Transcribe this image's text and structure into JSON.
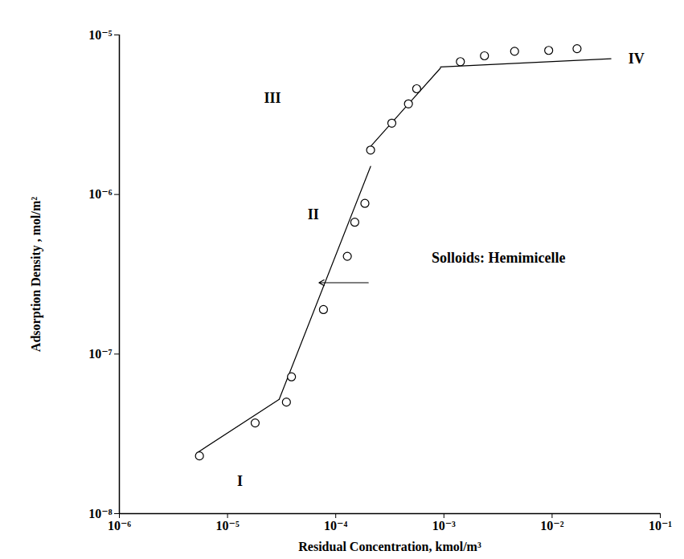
{
  "chart_data": {
    "type": "scatter",
    "x_label": "Residual Concentration, kmol/m³",
    "y_label": "Adsorption Density , mol/m²",
    "log": true,
    "grid": false,
    "color": "#000000",
    "marker": "circle",
    "xlim": [
      1e-06,
      0.1
    ],
    "ylim": [
      1e-08,
      1e-05
    ],
    "xticks": [
      {
        "value": 1e-06,
        "label": "10⁻⁶"
      },
      {
        "value": 1e-05,
        "label": "10⁻⁵"
      },
      {
        "value": 0.0001,
        "label": "10⁻⁴"
      },
      {
        "value": 0.001,
        "label": "10⁻³"
      },
      {
        "value": 0.01,
        "label": "10⁻²"
      },
      {
        "value": 0.1,
        "label": "10⁻¹"
      }
    ],
    "yticks": [
      {
        "value": 1e-08,
        "label": "10⁻⁸"
      },
      {
        "value": 1e-07,
        "label": "10⁻⁷"
      },
      {
        "value": 1e-06,
        "label": "10⁻⁶"
      },
      {
        "value": 1e-05,
        "label": "10⁻⁵"
      }
    ],
    "points": {
      "x": [
        5.5e-06,
        1.8e-05,
        3.5e-05,
        3.9e-05,
        7.7e-05,
        0.000128,
        0.00015,
        0.000186,
        0.00021,
        0.00033,
        0.00047,
        0.00056,
        0.00142,
        0.00237,
        0.0045,
        0.0093,
        0.017
      ],
      "y": [
        2.3e-08,
        3.7e-08,
        5e-08,
        7.2e-08,
        1.9e-07,
        4.1e-07,
        6.7e-07,
        8.8e-07,
        1.9e-06,
        2.8e-06,
        3.7e-06,
        4.6e-06,
        6.8e-06,
        7.4e-06,
        7.9e-06,
        8e-06,
        8.2e-06
      ]
    },
    "fit_lines": [
      {
        "x": [
          5.2e-06,
          3e-05
        ],
        "y": [
          2.4e-08,
          5.2e-08
        ]
      },
      {
        "x": [
          3e-05,
          0.00021
        ],
        "y": [
          5.2e-08,
          1.5e-06
        ]
      },
      {
        "x": [
          0.00021,
          0.00093
        ],
        "y": [
          2e-06,
          6.2e-06
        ]
      },
      {
        "x": [
          0.00093,
          0.035
        ],
        "y": [
          6.3e-06,
          7.1e-06
        ]
      }
    ],
    "annotations": [
      {
        "text": "I",
        "x": 1.3e-05,
        "y": 1.6e-08
      },
      {
        "text": "II",
        "x": 6.2e-05,
        "y": 7.5e-07
      },
      {
        "text": "III",
        "x": 2.6e-05,
        "y": 4e-06
      },
      {
        "text": "IV",
        "x": 0.06,
        "y": 7.1e-06
      },
      {
        "text": "Solloids: Hemimicelle",
        "x": 0.0032,
        "y": 4e-07
      }
    ],
    "arrow": {
      "x1": 0.0002,
      "x2": 7e-05,
      "y": 2.8e-07
    }
  }
}
